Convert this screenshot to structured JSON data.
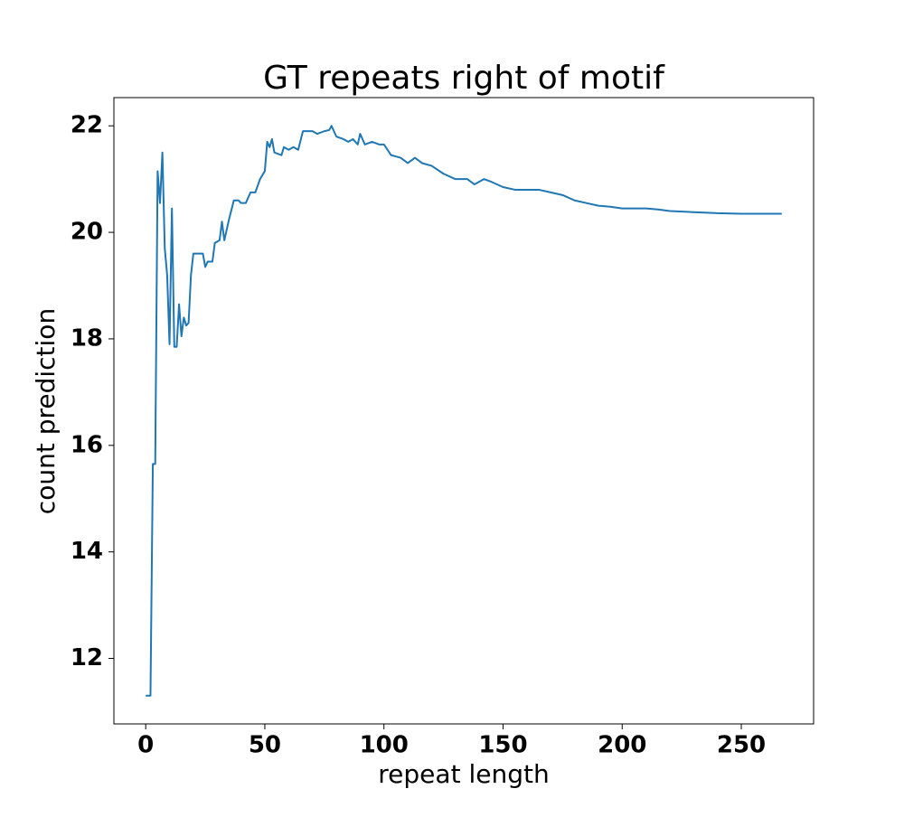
{
  "chart_data": {
    "type": "line",
    "title": "GT repeats right of motif",
    "xlabel": "repeat length",
    "ylabel": "count prediction",
    "color": "#1f77b4",
    "x": [
      0,
      1,
      2,
      3,
      4,
      5,
      6,
      7,
      8,
      9,
      10,
      11,
      12,
      13,
      14,
      15,
      16,
      17,
      18,
      19,
      20,
      21,
      24,
      25,
      26,
      28,
      29,
      31,
      32,
      33,
      35,
      37,
      39,
      40,
      42,
      44,
      46,
      48,
      50,
      51,
      52,
      53,
      54,
      57,
      58,
      60,
      62,
      64,
      66,
      70,
      72,
      75,
      77,
      78,
      80,
      83,
      85,
      87,
      89,
      90,
      92,
      95,
      98,
      100,
      103,
      107,
      110,
      113,
      116,
      120,
      125,
      130,
      135,
      138,
      142,
      145,
      150,
      155,
      160,
      165,
      170,
      175,
      180,
      185,
      190,
      195,
      200,
      210,
      215,
      220,
      230,
      240,
      250,
      267
    ],
    "values": [
      11.3,
      11.3,
      11.3,
      15.65,
      15.65,
      21.15,
      20.55,
      21.5,
      19.7,
      19.2,
      17.9,
      20.45,
      17.85,
      17.85,
      18.65,
      18.05,
      18.4,
      18.25,
      18.3,
      19.2,
      19.6,
      19.6,
      19.6,
      19.35,
      19.45,
      19.45,
      19.8,
      19.85,
      20.2,
      19.85,
      20.25,
      20.6,
      20.6,
      20.55,
      20.55,
      20.75,
      20.75,
      21.0,
      21.15,
      21.7,
      21.6,
      21.75,
      21.5,
      21.45,
      21.6,
      21.55,
      21.6,
      21.55,
      21.9,
      21.9,
      21.85,
      21.9,
      21.92,
      22.0,
      21.8,
      21.75,
      21.7,
      21.75,
      21.65,
      21.85,
      21.65,
      21.7,
      21.65,
      21.65,
      21.45,
      21.4,
      21.3,
      21.4,
      21.3,
      21.25,
      21.1,
      21.0,
      21.0,
      20.9,
      21.0,
      20.95,
      20.85,
      20.8,
      20.8,
      20.8,
      20.75,
      20.7,
      20.6,
      20.55,
      20.5,
      20.48,
      20.45,
      20.45,
      20.43,
      20.4,
      20.38,
      20.36,
      20.35,
      20.35
    ],
    "xlim": [
      -13.35,
      280.35
    ],
    "ylim": [
      10.77,
      22.53
    ],
    "xticks": [
      0,
      50,
      100,
      150,
      200,
      250
    ],
    "yticks": [
      12,
      14,
      16,
      18,
      20,
      22
    ]
  }
}
